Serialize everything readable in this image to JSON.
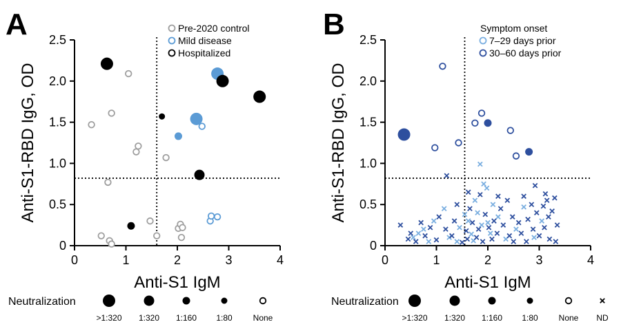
{
  "colors": {
    "control": "#9e9e9e",
    "mild": "#5b9bd5",
    "hosp": "#000000",
    "early": "#79aee0",
    "late": "#2e4f9e"
  },
  "chart_data": [
    {
      "panel_letter": "A",
      "type": "scatter",
      "xlabel": "Anti-S1 IgM",
      "ylabel": "Anti-S1-RBD IgG, OD",
      "xlim": [
        0,
        4
      ],
      "ylim": [
        0,
        2.5
      ],
      "xticks": [
        "0",
        "1",
        "2",
        "3",
        "4"
      ],
      "yticks": [
        "0",
        "0.5",
        "1.0",
        "1.5",
        "2.0",
        "2.5"
      ],
      "cutoff_x": 1.6,
      "cutoff_y": 0.82,
      "legend": {
        "position": "top-right",
        "entries": [
          {
            "label": "Pre-2020 control",
            "color": "#9e9e9e"
          },
          {
            "label": "Mild disease",
            "color": "#5b9bd5"
          },
          {
            "label": "Hospitalized",
            "color": "#000000"
          }
        ]
      },
      "series": [
        {
          "name": "Pre-2020 control",
          "color": "#9e9e9e",
          "points": [
            {
              "x": 0.33,
              "y": 1.47,
              "n": "None"
            },
            {
              "x": 0.65,
              "y": 0.77,
              "n": "None"
            },
            {
              "x": 0.72,
              "y": 1.61,
              "n": "None"
            },
            {
              "x": 1.05,
              "y": 2.09,
              "n": "None"
            },
            {
              "x": 1.2,
              "y": 1.14,
              "n": "None"
            },
            {
              "x": 1.24,
              "y": 1.21,
              "n": "None"
            },
            {
              "x": 1.78,
              "y": 1.07,
              "n": "None"
            },
            {
              "x": 0.52,
              "y": 0.12,
              "n": "None"
            },
            {
              "x": 0.68,
              "y": 0.06,
              "n": "None"
            },
            {
              "x": 0.72,
              "y": 0.02,
              "n": "None"
            },
            {
              "x": 1.47,
              "y": 0.3,
              "n": "None"
            },
            {
              "x": 1.6,
              "y": 0.12,
              "n": "None"
            },
            {
              "x": 2.02,
              "y": 0.21,
              "n": "None"
            },
            {
              "x": 2.06,
              "y": 0.26,
              "n": "None"
            },
            {
              "x": 2.08,
              "y": 0.1,
              "n": "None"
            },
            {
              "x": 2.1,
              "y": 0.22,
              "n": "None"
            }
          ]
        },
        {
          "name": "Mild disease",
          "color": "#5b9bd5",
          "points": [
            {
              "x": 2.78,
              "y": 2.09,
              "n": ">1:320"
            },
            {
              "x": 2.37,
              "y": 1.54,
              "n": ">1:320"
            },
            {
              "x": 2.02,
              "y": 1.33,
              "n": "1:160"
            },
            {
              "x": 2.48,
              "y": 1.45,
              "n": "None"
            },
            {
              "x": 2.64,
              "y": 0.3,
              "n": "None"
            },
            {
              "x": 2.66,
              "y": 0.36,
              "n": "None"
            },
            {
              "x": 2.78,
              "y": 0.35,
              "n": "None"
            }
          ]
        },
        {
          "name": "Hospitalized",
          "color": "#000000",
          "points": [
            {
              "x": 0.63,
              "y": 2.21,
              "n": ">1:320"
            },
            {
              "x": 2.88,
              "y": 2.0,
              "n": ">1:320"
            },
            {
              "x": 3.6,
              "y": 1.81,
              "n": ">1:320"
            },
            {
              "x": 1.7,
              "y": 1.57,
              "n": "1:80"
            },
            {
              "x": 2.43,
              "y": 0.86,
              "n": "1:320"
            },
            {
              "x": 1.1,
              "y": 0.24,
              "n": "1:160"
            }
          ]
        }
      ],
      "neutralization_legend": {
        "title": "Neutralization",
        "labels": [
          ">1:320",
          "1:320",
          "1:160",
          "1:80",
          "None"
        ]
      }
    },
    {
      "panel_letter": "B",
      "type": "scatter",
      "xlabel": "Anti-S1 IgM",
      "ylabel": "Anti-S1-RBD IgG, OD",
      "xlim": [
        0,
        4
      ],
      "ylim": [
        0,
        2.5
      ],
      "xticks": [
        "0",
        "1",
        "2",
        "3",
        "4"
      ],
      "yticks": [
        "0",
        "0.5",
        "1.0",
        "1.5",
        "2.0",
        "2.5"
      ],
      "cutoff_x": 1.55,
      "cutoff_y": 0.82,
      "legend": {
        "title": "Symptom onset",
        "position": "top-right",
        "entries": [
          {
            "label": "7–29 days prior",
            "color": "#79aee0"
          },
          {
            "label": "30–60 days prior",
            "color": "#2e4f9e"
          }
        ]
      },
      "series": [
        {
          "name": "7–29 days prior",
          "color": "#79aee0",
          "points": [
            {
              "x": 1.85,
              "y": 0.99,
              "n": "ND"
            },
            {
              "x": 1.92,
              "y": 0.75,
              "n": "ND"
            },
            {
              "x": 1.98,
              "y": 0.7,
              "n": "ND"
            },
            {
              "x": 1.75,
              "y": 0.55,
              "n": "ND"
            },
            {
              "x": 0.55,
              "y": 0.1,
              "n": "ND"
            },
            {
              "x": 0.75,
              "y": 0.2,
              "n": "ND"
            },
            {
              "x": 0.95,
              "y": 0.3,
              "n": "ND"
            },
            {
              "x": 1.25,
              "y": 0.1,
              "n": "ND"
            },
            {
              "x": 1.45,
              "y": 0.22,
              "n": "ND"
            },
            {
              "x": 1.62,
              "y": 0.3,
              "n": "ND"
            },
            {
              "x": 1.68,
              "y": 0.14,
              "n": "ND"
            },
            {
              "x": 1.72,
              "y": 0.06,
              "n": "ND"
            },
            {
              "x": 1.8,
              "y": 0.4,
              "n": "ND"
            },
            {
              "x": 1.88,
              "y": 0.25,
              "n": "ND"
            },
            {
              "x": 2.05,
              "y": 0.15,
              "n": "ND"
            },
            {
              "x": 2.1,
              "y": 0.5,
              "n": "ND"
            },
            {
              "x": 2.2,
              "y": 0.35,
              "n": "ND"
            },
            {
              "x": 2.35,
              "y": 0.08,
              "n": "ND"
            },
            {
              "x": 2.55,
              "y": 0.2,
              "n": "ND"
            },
            {
              "x": 2.7,
              "y": 0.47,
              "n": "ND"
            },
            {
              "x": 2.9,
              "y": 0.1,
              "n": "ND"
            },
            {
              "x": 3.05,
              "y": 0.3,
              "n": "ND"
            },
            {
              "x": 1.15,
              "y": 0.45,
              "n": "ND"
            },
            {
              "x": 0.85,
              "y": 0.05,
              "n": "ND"
            },
            {
              "x": 1.4,
              "y": 0.05,
              "n": "ND"
            },
            {
              "x": 2.0,
              "y": 0.28,
              "n": "ND"
            },
            {
              "x": 1.55,
              "y": 0.38,
              "n": "ND"
            },
            {
              "x": 0.65,
              "y": 0.15,
              "n": "ND"
            }
          ]
        },
        {
          "name": "30–60 days prior",
          "color": "#2e4f9e",
          "points": [
            {
              "x": 0.37,
              "y": 1.35,
              "n": ">1:320"
            },
            {
              "x": 1.12,
              "y": 2.18,
              "n": "None"
            },
            {
              "x": 0.97,
              "y": 1.19,
              "n": "None"
            },
            {
              "x": 1.43,
              "y": 1.25,
              "n": "None"
            },
            {
              "x": 1.75,
              "y": 1.49,
              "n": "None"
            },
            {
              "x": 1.88,
              "y": 1.61,
              "n": "None"
            },
            {
              "x": 2.0,
              "y": 1.49,
              "n": "1:160"
            },
            {
              "x": 2.44,
              "y": 1.4,
              "n": "None"
            },
            {
              "x": 2.55,
              "y": 1.09,
              "n": "None"
            },
            {
              "x": 2.8,
              "y": 1.14,
              "n": "1:160"
            },
            {
              "x": 1.2,
              "y": 0.85,
              "n": "ND"
            },
            {
              "x": 1.62,
              "y": 0.65,
              "n": "ND"
            },
            {
              "x": 2.92,
              "y": 0.73,
              "n": "ND"
            },
            {
              "x": 1.85,
              "y": 0.62,
              "n": "ND"
            },
            {
              "x": 1.4,
              "y": 0.5,
              "n": "ND"
            },
            {
              "x": 3.12,
              "y": 0.63,
              "n": "ND"
            },
            {
              "x": 0.3,
              "y": 0.25,
              "n": "ND"
            },
            {
              "x": 0.5,
              "y": 0.15,
              "n": "ND"
            },
            {
              "x": 0.6,
              "y": 0.05,
              "n": "ND"
            },
            {
              "x": 0.78,
              "y": 0.12,
              "n": "ND"
            },
            {
              "x": 0.88,
              "y": 0.22,
              "n": "ND"
            },
            {
              "x": 1.0,
              "y": 0.07,
              "n": "ND"
            },
            {
              "x": 1.05,
              "y": 0.35,
              "n": "ND"
            },
            {
              "x": 1.18,
              "y": 0.2,
              "n": "ND"
            },
            {
              "x": 1.3,
              "y": 0.12,
              "n": "ND"
            },
            {
              "x": 1.35,
              "y": 0.3,
              "n": "ND"
            },
            {
              "x": 1.5,
              "y": 0.04,
              "n": "ND"
            },
            {
              "x": 1.58,
              "y": 0.18,
              "n": "ND"
            },
            {
              "x": 1.65,
              "y": 0.45,
              "n": "ND"
            },
            {
              "x": 1.7,
              "y": 0.28,
              "n": "ND"
            },
            {
              "x": 1.78,
              "y": 0.1,
              "n": "ND"
            },
            {
              "x": 1.82,
              "y": 0.2,
              "n": "ND"
            },
            {
              "x": 1.9,
              "y": 0.05,
              "n": "ND"
            },
            {
              "x": 1.95,
              "y": 0.38,
              "n": "ND"
            },
            {
              "x": 2.02,
              "y": 0.22,
              "n": "ND"
            },
            {
              "x": 2.08,
              "y": 0.08,
              "n": "ND"
            },
            {
              "x": 2.12,
              "y": 0.3,
              "n": "ND"
            },
            {
              "x": 2.18,
              "y": 0.15,
              "n": "ND"
            },
            {
              "x": 2.25,
              "y": 0.45,
              "n": "ND"
            },
            {
              "x": 2.3,
              "y": 0.25,
              "n": "ND"
            },
            {
              "x": 2.38,
              "y": 0.55,
              "n": "ND"
            },
            {
              "x": 2.42,
              "y": 0.12,
              "n": "ND"
            },
            {
              "x": 2.48,
              "y": 0.35,
              "n": "ND"
            },
            {
              "x": 2.5,
              "y": 0.05,
              "n": "ND"
            },
            {
              "x": 2.6,
              "y": 0.28,
              "n": "ND"
            },
            {
              "x": 2.65,
              "y": 0.15,
              "n": "ND"
            },
            {
              "x": 2.75,
              "y": 0.05,
              "n": "ND"
            },
            {
              "x": 2.78,
              "y": 0.32,
              "n": "ND"
            },
            {
              "x": 2.85,
              "y": 0.5,
              "n": "ND"
            },
            {
              "x": 2.88,
              "y": 0.2,
              "n": "ND"
            },
            {
              "x": 2.95,
              "y": 0.4,
              "n": "ND"
            },
            {
              "x": 3.0,
              "y": 0.12,
              "n": "ND"
            },
            {
              "x": 3.08,
              "y": 0.48,
              "n": "ND"
            },
            {
              "x": 3.1,
              "y": 0.22,
              "n": "ND"
            },
            {
              "x": 3.15,
              "y": 0.55,
              "n": "ND"
            },
            {
              "x": 3.18,
              "y": 0.35,
              "n": "ND"
            },
            {
              "x": 3.2,
              "y": 0.08,
              "n": "ND"
            },
            {
              "x": 3.25,
              "y": 0.42,
              "n": "ND"
            },
            {
              "x": 3.3,
              "y": 0.58,
              "n": "ND"
            },
            {
              "x": 3.35,
              "y": 0.25,
              "n": "ND"
            },
            {
              "x": 3.32,
              "y": 0.05,
              "n": "ND"
            },
            {
              "x": 2.7,
              "y": 0.6,
              "n": "ND"
            },
            {
              "x": 2.2,
              "y": 0.6,
              "n": "ND"
            },
            {
              "x": 1.6,
              "y": 0.08,
              "n": "ND"
            },
            {
              "x": 0.45,
              "y": 0.08,
              "n": "ND"
            },
            {
              "x": 0.7,
              "y": 0.28,
              "n": "ND"
            }
          ]
        }
      ],
      "neutralization_legend": {
        "title": "Neutralization",
        "labels": [
          ">1:320",
          "1:320",
          "1:160",
          "1:80",
          "None",
          "ND"
        ]
      }
    }
  ]
}
